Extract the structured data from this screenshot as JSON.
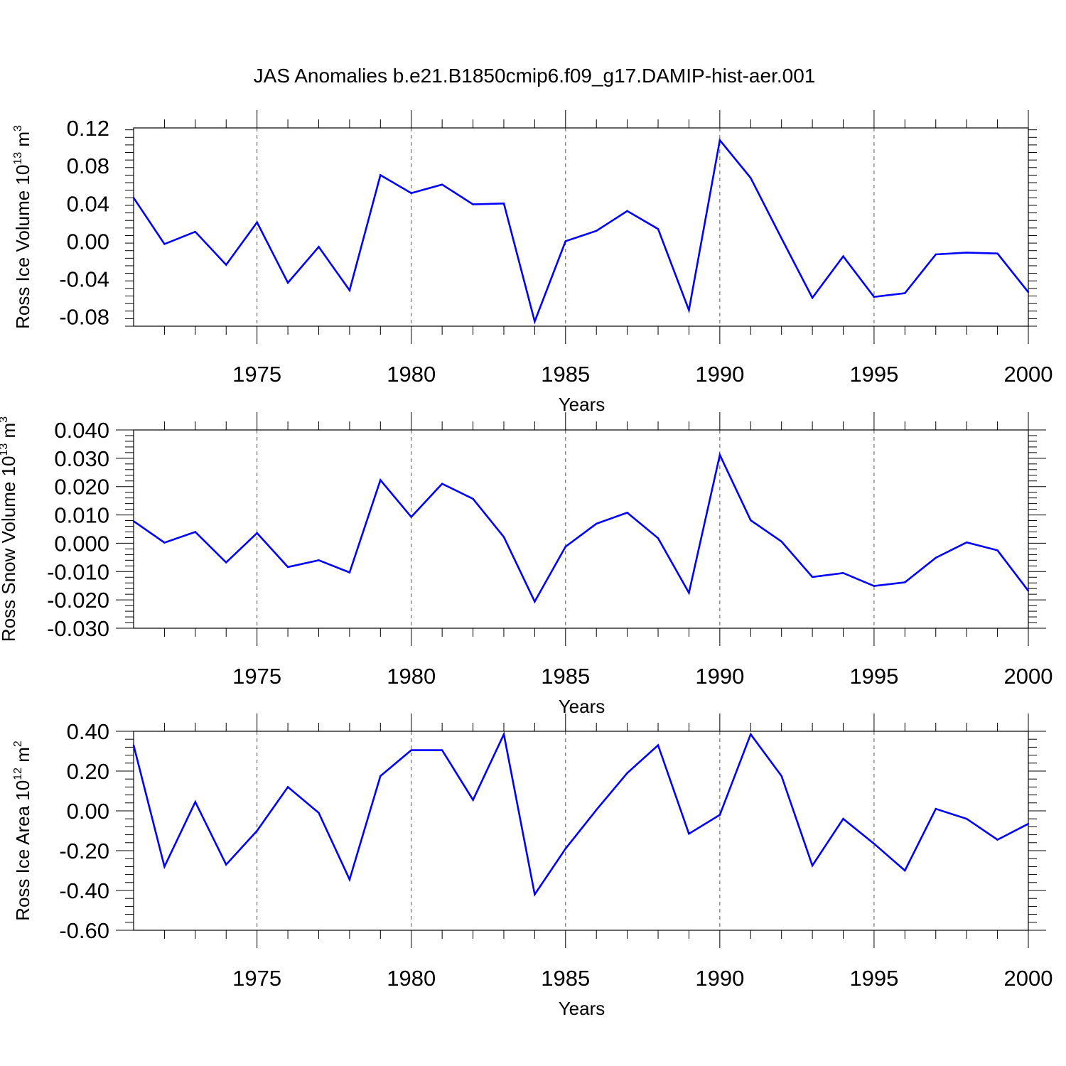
{
  "title": "JAS Anomalies b.e21.B1850cmip6.f09_g17.DAMIP-hist-aer.001",
  "colors": {
    "line": "#0000ff",
    "axis": "#000000",
    "grid": "#555555"
  },
  "chart_data": [
    {
      "type": "line",
      "ylabel": "Ross Ice Volume 10",
      "ylabel_exp": "13",
      "ylabel_unit": " m",
      "ylabel_unit_exp": "3",
      "xlabel": "Years",
      "xlim": [
        1971,
        2000
      ],
      "ylim": [
        -0.09,
        0.12
      ],
      "yticks": [
        0.12,
        0.08,
        0.04,
        0.0,
        -0.04,
        -0.08
      ],
      "ytick_labels": [
        "0.12",
        "0.08",
        "0.04",
        "0.00",
        "-0.04",
        "-0.08"
      ],
      "xticks": [
        1975,
        1980,
        1985,
        1990,
        1995,
        2000
      ],
      "xtick_labels": [
        "1975",
        "1980",
        "1985",
        "1990",
        "1995",
        "2000"
      ],
      "grid": "vertical dashed at major x ticks",
      "x": [
        1971,
        1972,
        1973,
        1974,
        1975,
        1976,
        1977,
        1978,
        1979,
        1980,
        1981,
        1982,
        1983,
        1984,
        1985,
        1986,
        1987,
        1988,
        1989,
        1990,
        1991,
        1992,
        1993,
        1994,
        1995,
        1996,
        1997,
        1998,
        1999,
        2000
      ],
      "values": [
        0.046,
        -0.003,
        0.01,
        -0.025,
        0.02,
        -0.044,
        -0.006,
        -0.052,
        0.07,
        0.051,
        0.06,
        0.039,
        0.04,
        -0.085,
        0.0,
        0.011,
        0.032,
        0.013,
        -0.073,
        0.107,
        0.067,
        0.003,
        -0.06,
        -0.016,
        -0.059,
        -0.055,
        -0.014,
        -0.012,
        -0.013,
        -0.054
      ]
    },
    {
      "type": "line",
      "ylabel": "Ross Snow Volume 10",
      "ylabel_exp": "13",
      "ylabel_unit": " m",
      "ylabel_unit_exp": "3",
      "xlabel": "Years",
      "xlim": [
        1971,
        2000
      ],
      "ylim": [
        -0.03,
        0.04
      ],
      "yticks": [
        0.04,
        0.03,
        0.02,
        0.01,
        0.0,
        -0.01,
        -0.02,
        -0.03
      ],
      "ytick_labels": [
        "0.040",
        "0.030",
        "0.020",
        "0.010",
        "0.000",
        "-0.010",
        "-0.020",
        "-0.030"
      ],
      "xticks": [
        1975,
        1980,
        1985,
        1990,
        1995,
        2000
      ],
      "xtick_labels": [
        "1975",
        "1980",
        "1985",
        "1990",
        "1995",
        "2000"
      ],
      "grid": "vertical dashed at major x ticks",
      "x": [
        1971,
        1972,
        1973,
        1974,
        1975,
        1976,
        1977,
        1978,
        1979,
        1980,
        1981,
        1982,
        1983,
        1984,
        1985,
        1986,
        1987,
        1988,
        1989,
        1990,
        1991,
        1992,
        1993,
        1994,
        1995,
        1996,
        1997,
        1998,
        1999,
        2000
      ],
      "values": [
        0.0078,
        0.0002,
        0.004,
        -0.0068,
        0.0036,
        -0.0084,
        -0.006,
        -0.0103,
        0.0223,
        0.0093,
        0.021,
        0.0157,
        0.0022,
        -0.0206,
        -0.0012,
        0.0069,
        0.0108,
        0.0018,
        -0.0175,
        0.0312,
        0.0081,
        0.0006,
        -0.0119,
        -0.0105,
        -0.0151,
        -0.0138,
        -0.0051,
        0.0003,
        -0.0025,
        -0.0168
      ]
    },
    {
      "type": "line",
      "ylabel": "Ross Ice Area 10",
      "ylabel_exp": "12",
      "ylabel_unit": " m",
      "ylabel_unit_exp": "2",
      "xlabel": "Years",
      "xlim": [
        1971,
        2000
      ],
      "ylim": [
        -0.6,
        0.4
      ],
      "yticks": [
        0.4,
        0.2,
        0.0,
        -0.2,
        -0.4,
        -0.6
      ],
      "ytick_labels": [
        "0.40",
        "0.20",
        "0.00",
        "-0.20",
        "-0.40",
        "-0.60"
      ],
      "xticks": [
        1975,
        1980,
        1985,
        1990,
        1995,
        2000
      ],
      "xtick_labels": [
        "1975",
        "1980",
        "1985",
        "1990",
        "1995",
        "2000"
      ],
      "grid": "vertical dashed at major x ticks",
      "x": [
        1971,
        1972,
        1973,
        1974,
        1975,
        1976,
        1977,
        1978,
        1979,
        1980,
        1981,
        1982,
        1983,
        1984,
        1985,
        1986,
        1987,
        1988,
        1989,
        1990,
        1991,
        1992,
        1993,
        1994,
        1995,
        1996,
        1997,
        1998,
        1999,
        2000
      ],
      "values": [
        0.33,
        -0.28,
        0.045,
        -0.27,
        -0.1,
        0.12,
        -0.01,
        -0.345,
        0.175,
        0.305,
        0.305,
        0.055,
        0.385,
        -0.42,
        -0.19,
        0.005,
        0.19,
        0.33,
        -0.115,
        -0.02,
        0.385,
        0.175,
        -0.275,
        -0.04,
        -0.165,
        -0.3,
        0.01,
        -0.04,
        -0.145,
        -0.065
      ]
    }
  ]
}
